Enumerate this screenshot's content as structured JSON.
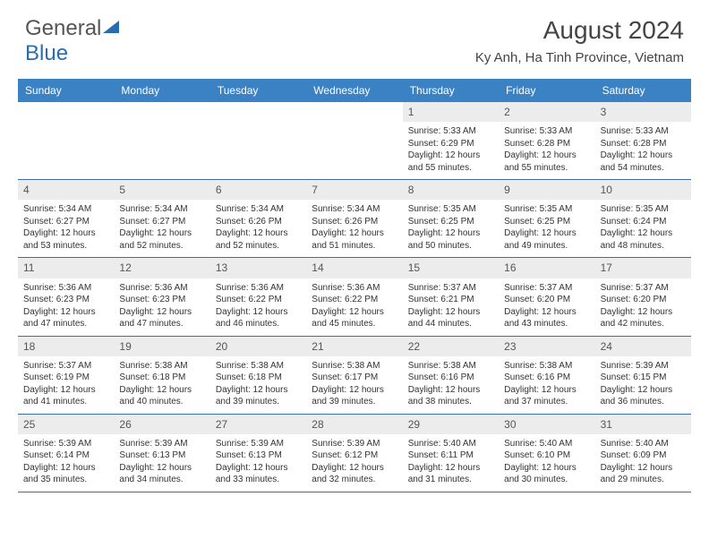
{
  "brand": {
    "part1": "General",
    "part2": "Blue"
  },
  "title": "August 2024",
  "location": "Ky Anh, Ha Tinh Province, Vietnam",
  "colors": {
    "header_bg": "#3b82c4",
    "header_text": "#ffffff",
    "daynum_bg": "#ececec",
    "week_border": "#3b6ea5",
    "text": "#333333"
  },
  "day_names": [
    "Sunday",
    "Monday",
    "Tuesday",
    "Wednesday",
    "Thursday",
    "Friday",
    "Saturday"
  ],
  "grid": {
    "first_weekday_index": 4,
    "days_in_month": 31
  },
  "days": {
    "1": {
      "sunrise": "5:33 AM",
      "sunset": "6:29 PM",
      "daylight": "12 hours and 55 minutes."
    },
    "2": {
      "sunrise": "5:33 AM",
      "sunset": "6:28 PM",
      "daylight": "12 hours and 55 minutes."
    },
    "3": {
      "sunrise": "5:33 AM",
      "sunset": "6:28 PM",
      "daylight": "12 hours and 54 minutes."
    },
    "4": {
      "sunrise": "5:34 AM",
      "sunset": "6:27 PM",
      "daylight": "12 hours and 53 minutes."
    },
    "5": {
      "sunrise": "5:34 AM",
      "sunset": "6:27 PM",
      "daylight": "12 hours and 52 minutes."
    },
    "6": {
      "sunrise": "5:34 AM",
      "sunset": "6:26 PM",
      "daylight": "12 hours and 52 minutes."
    },
    "7": {
      "sunrise": "5:34 AM",
      "sunset": "6:26 PM",
      "daylight": "12 hours and 51 minutes."
    },
    "8": {
      "sunrise": "5:35 AM",
      "sunset": "6:25 PM",
      "daylight": "12 hours and 50 minutes."
    },
    "9": {
      "sunrise": "5:35 AM",
      "sunset": "6:25 PM",
      "daylight": "12 hours and 49 minutes."
    },
    "10": {
      "sunrise": "5:35 AM",
      "sunset": "6:24 PM",
      "daylight": "12 hours and 48 minutes."
    },
    "11": {
      "sunrise": "5:36 AM",
      "sunset": "6:23 PM",
      "daylight": "12 hours and 47 minutes."
    },
    "12": {
      "sunrise": "5:36 AM",
      "sunset": "6:23 PM",
      "daylight": "12 hours and 47 minutes."
    },
    "13": {
      "sunrise": "5:36 AM",
      "sunset": "6:22 PM",
      "daylight": "12 hours and 46 minutes."
    },
    "14": {
      "sunrise": "5:36 AM",
      "sunset": "6:22 PM",
      "daylight": "12 hours and 45 minutes."
    },
    "15": {
      "sunrise": "5:37 AM",
      "sunset": "6:21 PM",
      "daylight": "12 hours and 44 minutes."
    },
    "16": {
      "sunrise": "5:37 AM",
      "sunset": "6:20 PM",
      "daylight": "12 hours and 43 minutes."
    },
    "17": {
      "sunrise": "5:37 AM",
      "sunset": "6:20 PM",
      "daylight": "12 hours and 42 minutes."
    },
    "18": {
      "sunrise": "5:37 AM",
      "sunset": "6:19 PM",
      "daylight": "12 hours and 41 minutes."
    },
    "19": {
      "sunrise": "5:38 AM",
      "sunset": "6:18 PM",
      "daylight": "12 hours and 40 minutes."
    },
    "20": {
      "sunrise": "5:38 AM",
      "sunset": "6:18 PM",
      "daylight": "12 hours and 39 minutes."
    },
    "21": {
      "sunrise": "5:38 AM",
      "sunset": "6:17 PM",
      "daylight": "12 hours and 39 minutes."
    },
    "22": {
      "sunrise": "5:38 AM",
      "sunset": "6:16 PM",
      "daylight": "12 hours and 38 minutes."
    },
    "23": {
      "sunrise": "5:38 AM",
      "sunset": "6:16 PM",
      "daylight": "12 hours and 37 minutes."
    },
    "24": {
      "sunrise": "5:39 AM",
      "sunset": "6:15 PM",
      "daylight": "12 hours and 36 minutes."
    },
    "25": {
      "sunrise": "5:39 AM",
      "sunset": "6:14 PM",
      "daylight": "12 hours and 35 minutes."
    },
    "26": {
      "sunrise": "5:39 AM",
      "sunset": "6:13 PM",
      "daylight": "12 hours and 34 minutes."
    },
    "27": {
      "sunrise": "5:39 AM",
      "sunset": "6:13 PM",
      "daylight": "12 hours and 33 minutes."
    },
    "28": {
      "sunrise": "5:39 AM",
      "sunset": "6:12 PM",
      "daylight": "12 hours and 32 minutes."
    },
    "29": {
      "sunrise": "5:40 AM",
      "sunset": "6:11 PM",
      "daylight": "12 hours and 31 minutes."
    },
    "30": {
      "sunrise": "5:40 AM",
      "sunset": "6:10 PM",
      "daylight": "12 hours and 30 minutes."
    },
    "31": {
      "sunrise": "5:40 AM",
      "sunset": "6:09 PM",
      "daylight": "12 hours and 29 minutes."
    }
  },
  "labels": {
    "sunrise_prefix": "Sunrise: ",
    "sunset_prefix": "Sunset: ",
    "daylight_prefix": "Daylight: "
  }
}
